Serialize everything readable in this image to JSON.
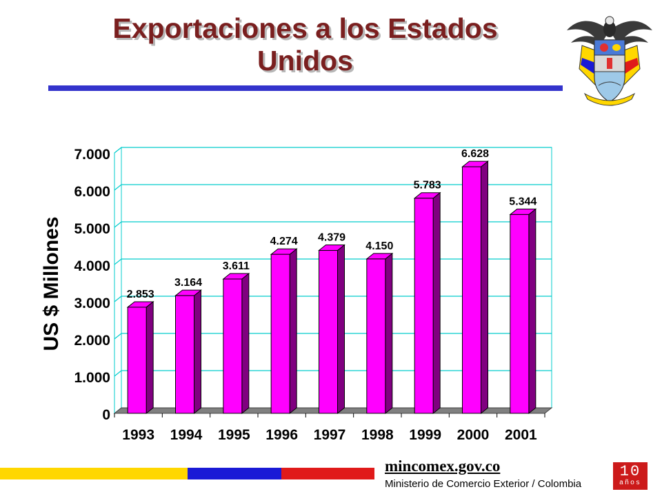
{
  "slide": {
    "title_line1": "Exportaciones a los Estados",
    "title_line2": "Unidos"
  },
  "colors": {
    "title": "#7a1f1f",
    "rule": "#3333cc",
    "bar_front": "#ff00ff",
    "bar_side": "#800080",
    "grid": "#00cccc",
    "flag_yellow": "#ffd700",
    "flag_blue": "#1a1ad6",
    "flag_red": "#e01a1a"
  },
  "chart_data": {
    "type": "bar",
    "categories": [
      "1993",
      "1994",
      "1995",
      "1996",
      "1997",
      "1998",
      "1999",
      "2000",
      "2001"
    ],
    "values": [
      2853,
      3164,
      3611,
      4274,
      4379,
      4150,
      5783,
      6628,
      5344
    ],
    "data_labels": [
      "2.853",
      "3.164",
      "3.611",
      "4.274",
      "4.379",
      "4.150",
      "5.783",
      "6.628",
      "5.344"
    ],
    "ylabel": "US $ Millones",
    "ylim": [
      0,
      7000
    ],
    "yticks": [
      0,
      1000,
      2000,
      3000,
      4000,
      5000,
      6000,
      7000
    ],
    "ytick_labels": [
      "0",
      "1.000",
      "2.000",
      "3.000",
      "4.000",
      "5.000",
      "6.000",
      "7.000"
    ],
    "grid": true,
    "style": "3d-bar"
  },
  "footer": {
    "site": "mincomex.gov.co",
    "ministry": "Ministerio de Comercio Exterior / Colombia",
    "badge_number": "10",
    "badge_text": "años"
  },
  "icons": {
    "crest": "colombia-coat-of-arms-icon"
  }
}
